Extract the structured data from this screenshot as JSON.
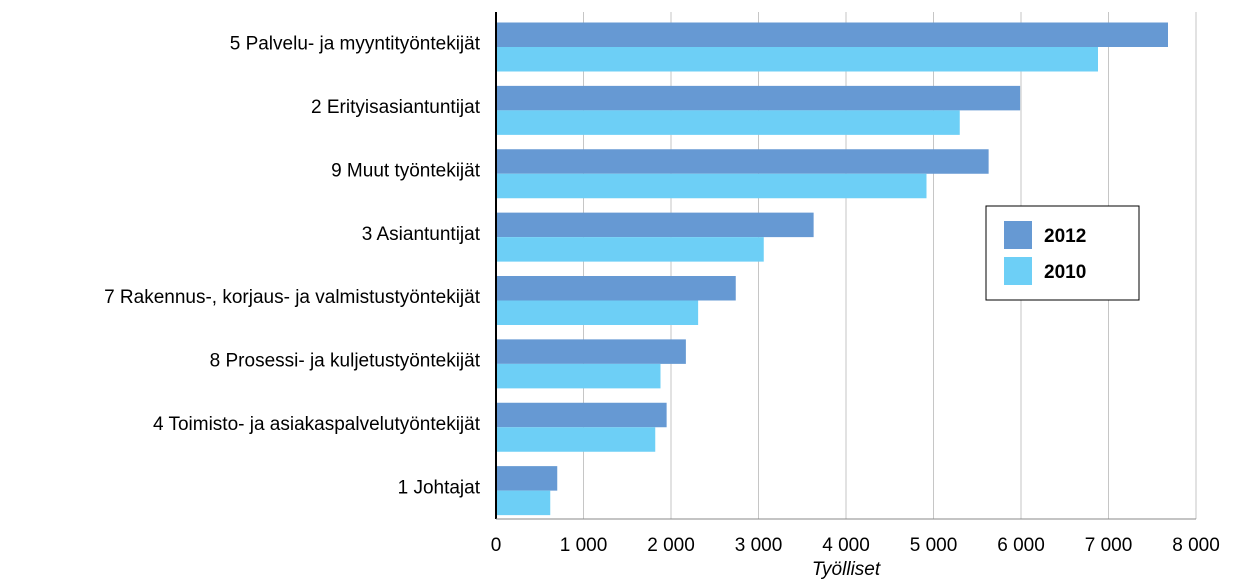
{
  "chart_data": {
    "type": "bar",
    "orientation": "horizontal",
    "title": "",
    "xlabel": "Työlliset",
    "ylabel": "",
    "xlim": [
      0,
      8000
    ],
    "x_ticks": [
      0,
      1000,
      2000,
      3000,
      4000,
      5000,
      6000,
      7000,
      8000
    ],
    "x_tick_labels": [
      "0",
      "1 000",
      "2 000",
      "3 000",
      "4 000",
      "5 000",
      "6 000",
      "7 000",
      "8 000"
    ],
    "grid": "vertical",
    "legend_position": "right",
    "categories": [
      "5 Palvelu- ja myyntityöntekijät",
      "2 Erityisasiantuntijat",
      "9 Muut työntekijät",
      "3 Asiantuntijat",
      "7 Rakennus-, korjaus- ja valmistustyöntekijät",
      "8 Prosessi- ja kuljetustyöntekijät",
      "4 Toimisto- ja asiakaspalvelutyöntekijät",
      "1 Johtajat"
    ],
    "series": [
      {
        "name": "2012",
        "color": "#6699d3",
        "values": [
          7680,
          5990,
          5630,
          3630,
          2740,
          2170,
          1950,
          700
        ]
      },
      {
        "name": "2010",
        "color": "#6dcff6",
        "values": [
          6880,
          5300,
          4920,
          3060,
          2310,
          1880,
          1820,
          620
        ]
      }
    ]
  }
}
